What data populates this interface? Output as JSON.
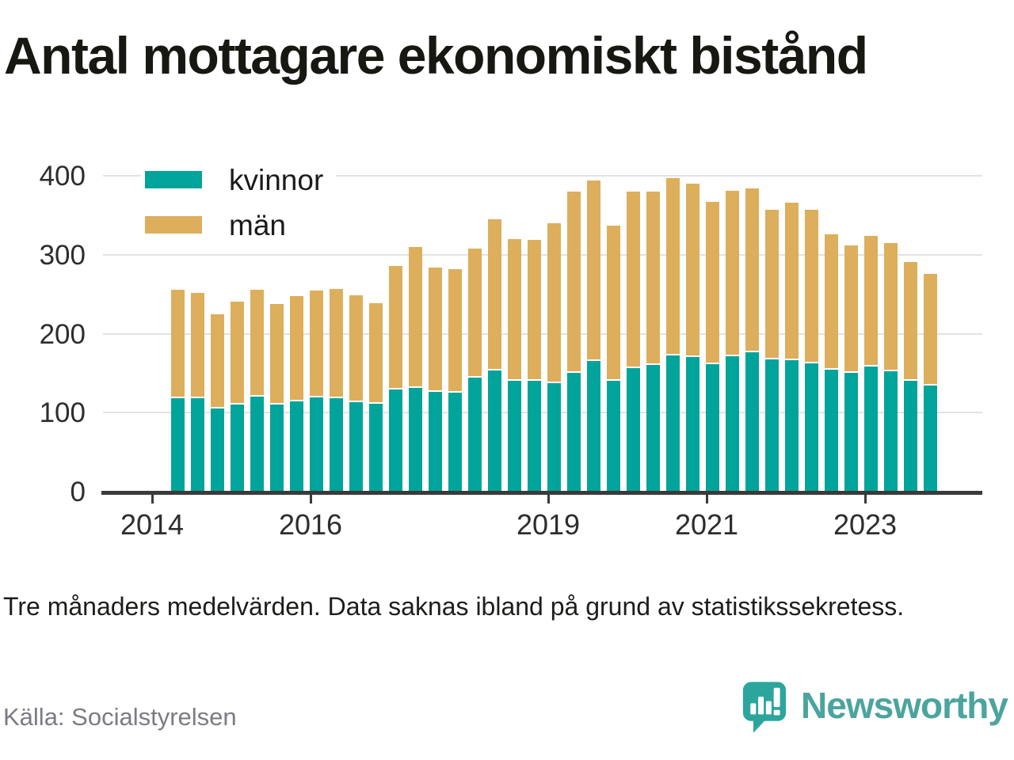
{
  "title": "Antal mottagare ekonomiskt bistånd",
  "note": "Tre månaders medelvärden. Data saknas ibland på grund av statistikssekretess.",
  "source": "Källa: Socialstyrelsen",
  "branding": {
    "wordmark": "Newsworthy",
    "logo_icon": "newsworthy-speech-bubble-bar-chart-icon",
    "wordmark_color": "#4BA49E",
    "icon_color": "#2CA69D"
  },
  "legend": [
    {
      "label": "kvinnor",
      "color": "#00A49B"
    },
    {
      "label": "män",
      "color": "#DDAE5C"
    }
  ],
  "colors": {
    "axis": "#3a3a3a",
    "gridline": "#e2e2e2",
    "kvinnor": "#00A49B",
    "man": "#DDAE5C"
  },
  "chart_data": {
    "type": "bar",
    "stacked": true,
    "title": "Antal mottagare ekonomiskt bistånd",
    "xlabel": "",
    "ylabel": "",
    "ylim": [
      0,
      400
    ],
    "y_ticks": [
      0,
      100,
      200,
      300,
      400
    ],
    "x_tick_labels": [
      "2014",
      "2016",
      "2019",
      "2021",
      "2023"
    ],
    "grid": "horizontal",
    "legend_position": "top-left",
    "x": [
      "2014-Q2",
      "2014-Q3",
      "2014-Q4",
      "2015-Q1",
      "2015-Q2",
      "2015-Q3",
      "2015-Q4",
      "2016-Q1",
      "2016-Q2",
      "2016-Q3",
      "2016-Q4",
      "2017-Q1",
      "2017-Q2",
      "2017-Q3",
      "2017-Q4",
      "2018-Q1",
      "2018-Q2",
      "2018-Q3",
      "2018-Q4",
      "2019-Q1",
      "2019-Q2",
      "2019-Q3",
      "2019-Q4",
      "2020-Q1",
      "2020-Q2",
      "2020-Q3",
      "2020-Q4",
      "2021-Q1",
      "2021-Q2",
      "2021-Q3",
      "2021-Q4",
      "2022-Q1",
      "2022-Q2",
      "2022-Q3",
      "2022-Q4",
      "2023-Q1",
      "2023-Q2",
      "2023-Q3",
      "2023-Q4"
    ],
    "series": [
      {
        "name": "kvinnor",
        "color": "#00A49B",
        "values": [
          118,
          118,
          105,
          110,
          120,
          110,
          114,
          119,
          118,
          113,
          111,
          129,
          131,
          126,
          125,
          144,
          153,
          140,
          140,
          137,
          150,
          165,
          140,
          156,
          160,
          172,
          170,
          161,
          171,
          176,
          167,
          166,
          162,
          154,
          150,
          158,
          152,
          140,
          134
        ]
      },
      {
        "name": "män",
        "color": "#DDAE5C",
        "values": [
          138,
          134,
          120,
          131,
          136,
          128,
          134,
          136,
          139,
          136,
          128,
          157,
          179,
          158,
          157,
          164,
          192,
          180,
          179,
          203,
          230,
          229,
          197,
          224,
          220,
          225,
          220,
          206,
          210,
          208,
          190,
          200,
          195,
          172,
          162,
          166,
          163,
          151,
          142
        ]
      }
    ]
  }
}
